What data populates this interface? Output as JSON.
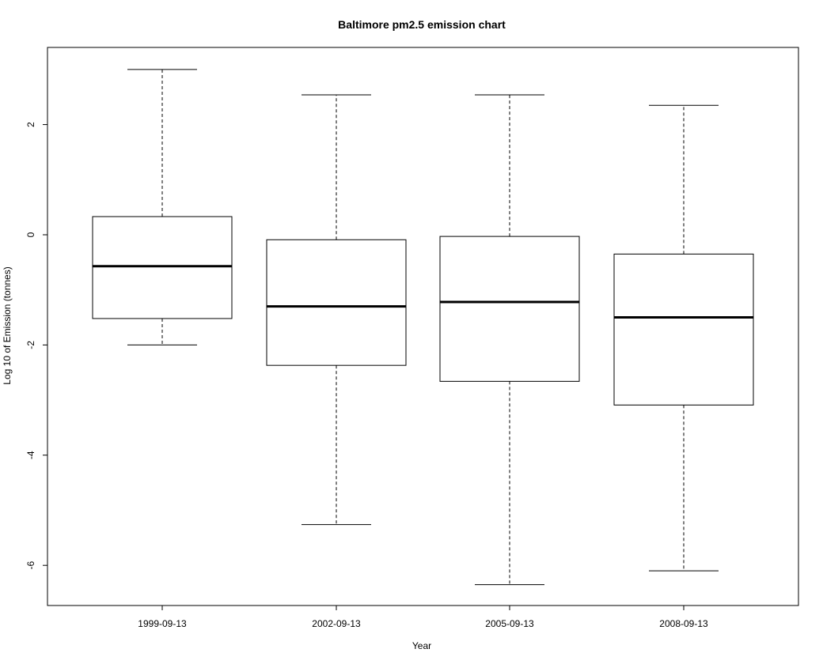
{
  "chart_data": {
    "type": "boxplot",
    "title": "Baltimore pm2.5 emission chart",
    "xlabel": "Year",
    "ylabel": "Log 10 of Emission (tonnes)",
    "categories": [
      "1999-09-13",
      "2002-09-13",
      "2005-09-13",
      "2008-09-13"
    ],
    "boxes": [
      {
        "category": "1999-09-13",
        "min": -2.0,
        "q1": -1.52,
        "median": -0.57,
        "q3": 0.33,
        "max": 3.0
      },
      {
        "category": "2002-09-13",
        "min": -5.26,
        "q1": -2.37,
        "median": -1.3,
        "q3": -0.09,
        "max": 2.54
      },
      {
        "category": "2005-09-13",
        "min": -6.35,
        "q1": -2.66,
        "median": -1.22,
        "q3": -0.03,
        "max": 2.54
      },
      {
        "category": "2008-09-13",
        "min": -6.1,
        "q1": -3.09,
        "median": -1.5,
        "q3": -0.35,
        "max": 2.35
      }
    ],
    "yticks": [
      2,
      0,
      -2,
      -4,
      -6
    ],
    "ylim": [
      -6.75,
      3.4
    ],
    "grid": false,
    "legend": "none"
  }
}
